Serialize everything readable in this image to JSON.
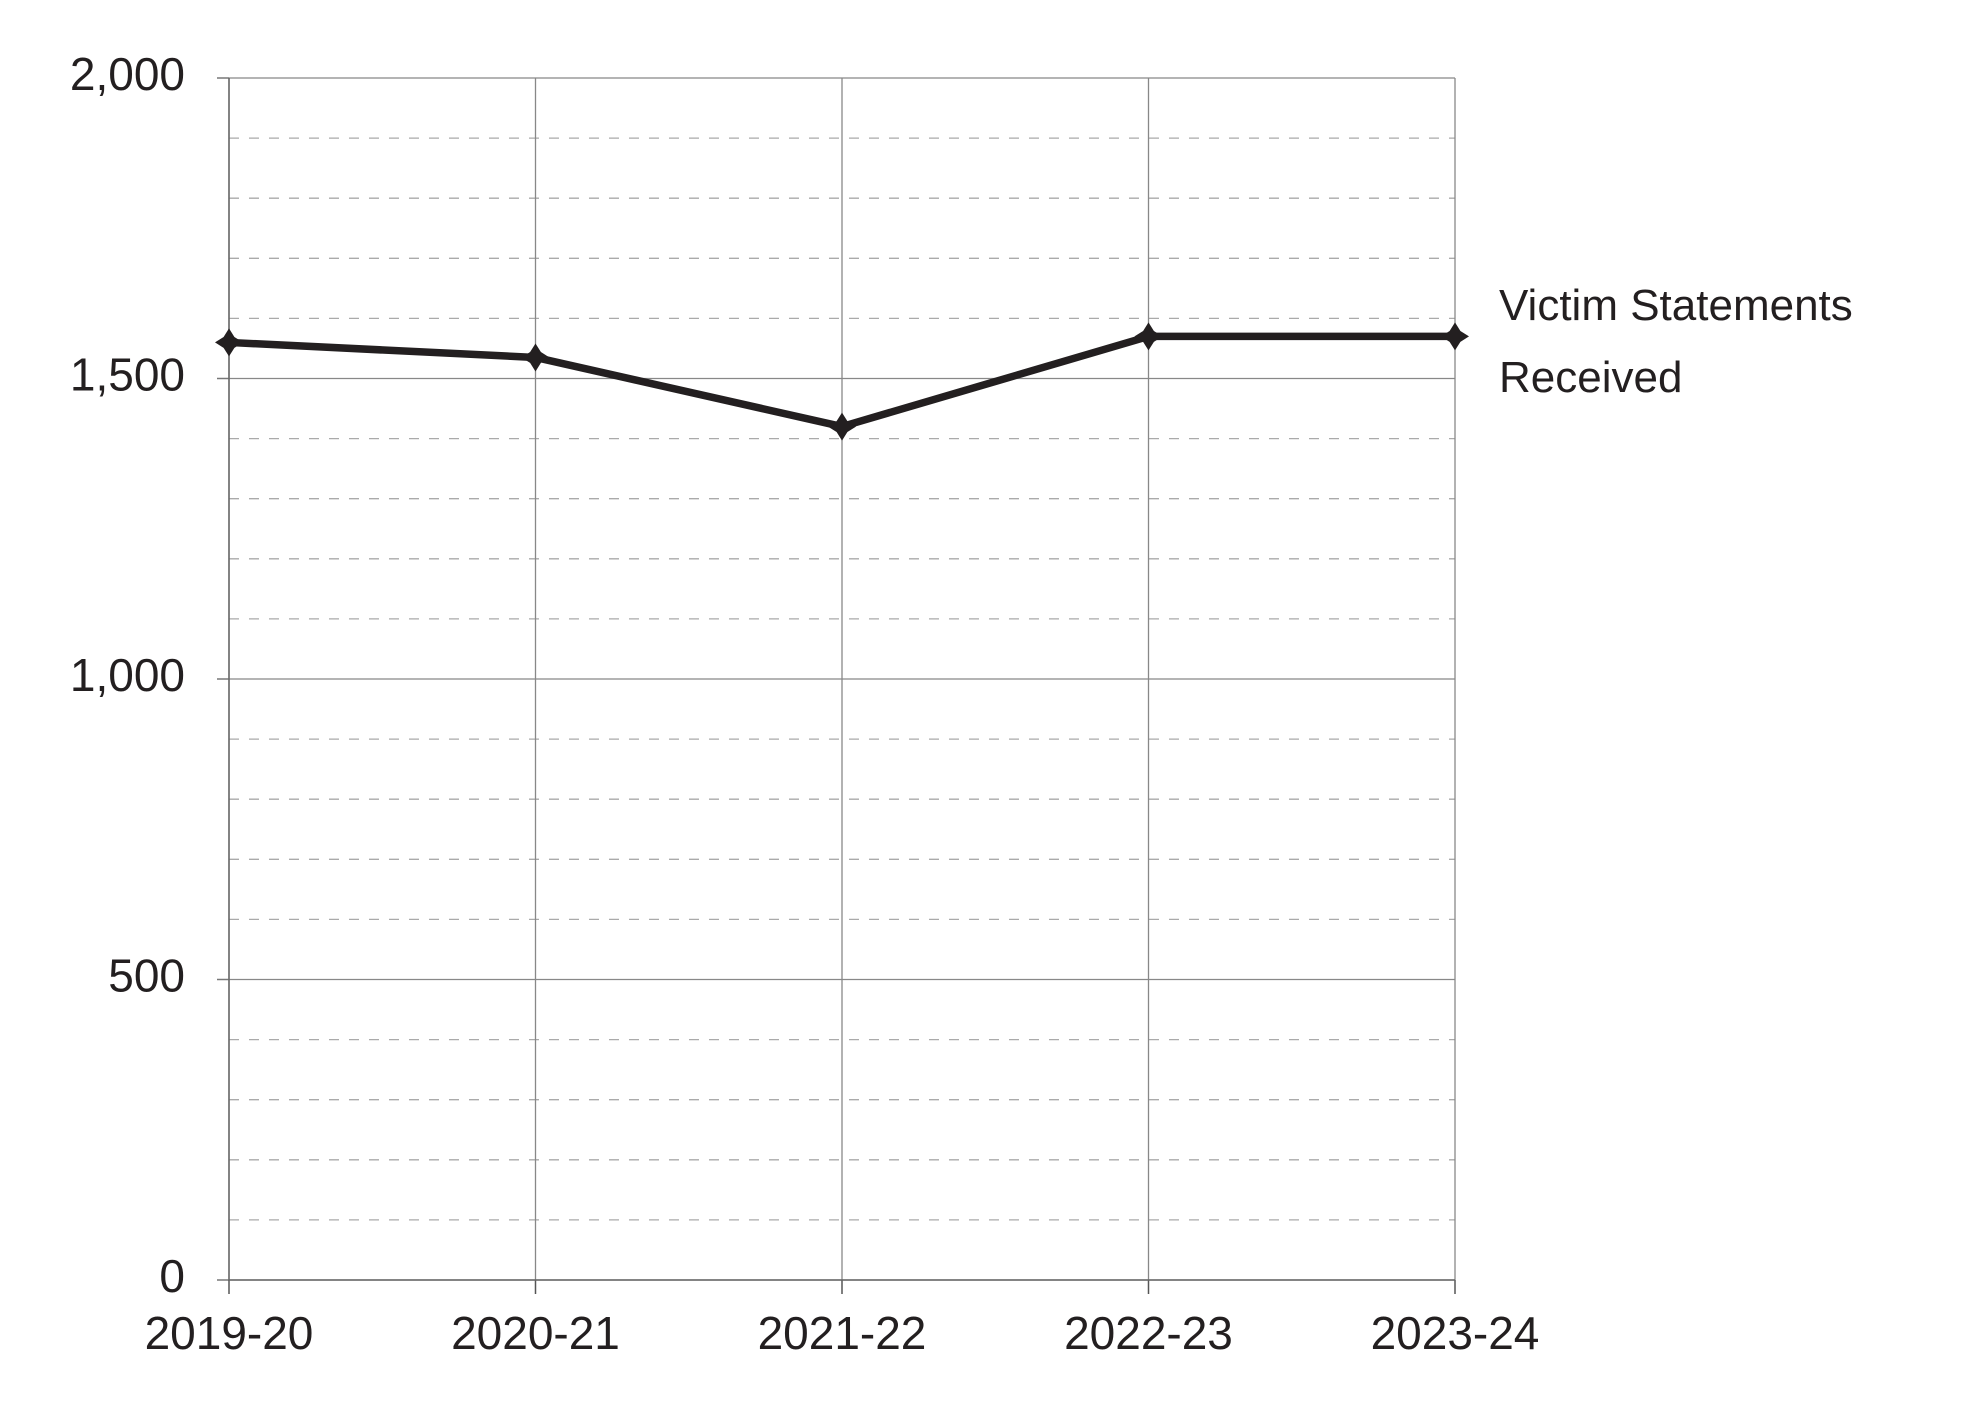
{
  "chart_data": {
    "type": "line",
    "categories": [
      "2019-20",
      "2020-21",
      "2021-22",
      "2022-23",
      "2023-24"
    ],
    "series": [
      {
        "name": "Victim Statements Received",
        "color": "#231f20",
        "values": [
          1560,
          1535,
          1420,
          1570,
          1570
        ]
      }
    ],
    "ylim": [
      0,
      2000
    ],
    "yticks": [
      0,
      {
        "value": 500,
        "label": "500"
      },
      {
        "value": 1000,
        "label": "1,000"
      },
      {
        "value": 1500,
        "label": "1,500"
      },
      {
        "value": 2000,
        "label": "2,000"
      }
    ],
    "yminorticks": [
      100,
      200,
      300,
      400,
      600,
      700,
      800,
      900,
      1100,
      1200,
      1300,
      1400,
      1600,
      1700,
      1800,
      1900
    ],
    "grid": true
  }
}
